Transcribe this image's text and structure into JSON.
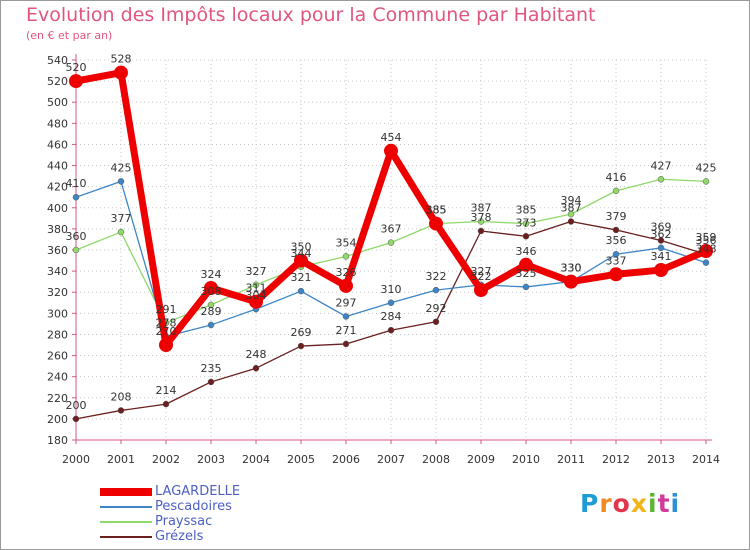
{
  "chart_data": {
    "type": "line",
    "title": "Evolution des Impôts locaux pour la Commune par Habitant",
    "subtitle": "(en € et par an)",
    "categories": [
      "2000",
      "2001",
      "2002",
      "2003",
      "2004",
      "2005",
      "2006",
      "2007",
      "2008",
      "2009",
      "2010",
      "2011",
      "2012",
      "2013",
      "2014"
    ],
    "ylim": [
      180,
      540
    ],
    "y_ticks": [
      180,
      200,
      220,
      240,
      260,
      280,
      300,
      320,
      340,
      360,
      380,
      400,
      420,
      440,
      460,
      480,
      500,
      520,
      540
    ],
    "grid": "horizontal dotted",
    "legend_position": "bottom-left",
    "series": [
      {
        "name": "LAGARDELLE",
        "color": "#ee0000",
        "values": [
          520,
          528,
          270,
          324,
          311,
          350,
          326,
          454,
          385,
          322,
          346,
          330,
          337,
          341,
          359
        ]
      },
      {
        "name": "Pescadoires",
        "color": "#3d85c6",
        "values": [
          410,
          425,
          278,
          289,
          304,
          321,
          297,
          310,
          322,
          327,
          325,
          330,
          356,
          362,
          348
        ]
      },
      {
        "name": "Prayssac",
        "color": "#8fd86a",
        "values": [
          360,
          377,
          291,
          308,
          327,
          344,
          354,
          367,
          385,
          387,
          385,
          394,
          416,
          427,
          425
        ]
      },
      {
        "name": "Grézels",
        "color": "#6b1f1f",
        "values": [
          200,
          208,
          214,
          235,
          248,
          269,
          271,
          284,
          292,
          378,
          373,
          387,
          379,
          369,
          356
        ]
      }
    ],
    "data_labels": {
      "LAGARDELLE": [
        "520",
        "528",
        "270",
        "324",
        "311",
        "350",
        "326",
        "454",
        "385",
        "322",
        "346",
        "330",
        "337",
        "341",
        "359"
      ],
      "Pescadoires": [
        "410",
        "425",
        "278",
        "289",
        "304",
        "321",
        "297",
        "310",
        "322",
        "327",
        "325",
        "330",
        "356",
        "362",
        "348"
      ],
      "Prayssac": [
        "360",
        "377",
        "291",
        "308",
        "327",
        "344",
        "354",
        "367",
        "385",
        "387",
        "385",
        "394",
        "416",
        "427",
        "425"
      ],
      "Grézels": [
        "200",
        "208",
        "214",
        "235",
        "248",
        "269",
        "271",
        "284",
        "292",
        "378",
        "373",
        "387",
        "379",
        "369",
        "356"
      ]
    }
  },
  "logo": {
    "text": "Proxiti",
    "colors": [
      "#1f9bd6",
      "#f08a24",
      "#e2344a",
      "#f2b418",
      "#5cb531",
      "#d23a9c",
      "#2d8fd5"
    ]
  }
}
